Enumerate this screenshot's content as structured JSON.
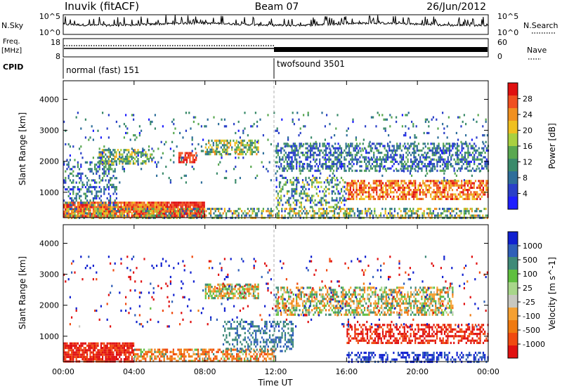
{
  "header": {
    "title_left": "Inuvik (fitACF)",
    "title_center": "Beam 07",
    "title_right": "26/Jun/2012"
  },
  "left_labels": {
    "nsky": "N.Sky",
    "freq": "Freq.",
    "mhz": "[MHz]",
    "cpid": "CPID"
  },
  "right_labels": {
    "nsearch": "N.Search",
    "nave": "Nave"
  },
  "panels": {
    "noise": {
      "left_ticks": [
        "10^5",
        "10^0"
      ],
      "right_ticks": [
        "10^5",
        "10^0"
      ]
    },
    "freq": {
      "left_ticks": [
        "18",
        "8"
      ],
      "right_ticks": [
        "60",
        "0"
      ]
    }
  },
  "cpid_segments": [
    {
      "label": "normal (fast) 151",
      "start_hour": 0
    },
    {
      "label": "twofsound 3501",
      "start_hour": 12
    }
  ],
  "colors": {
    "power": [
      "#1f1fff",
      "#2a40c8",
      "#2e6e9a",
      "#3a8a6a",
      "#5aa850",
      "#a9d040",
      "#f0c020",
      "#f09020",
      "#f05020",
      "#e01010"
    ],
    "velocity": [
      "#1020d0",
      "#2f5fb8",
      "#3f8a78",
      "#5fbf3f",
      "#a8d68a",
      "#c8c8c0",
      "#f5a032",
      "#f07a10",
      "#f04a10",
      "#e01010"
    ]
  },
  "chart_data": [
    {
      "type": "heatmap",
      "name": "power",
      "ylabel": "Slant Range [km]",
      "ylim": [
        180,
        4600
      ],
      "xlim_hours": [
        0,
        24
      ],
      "y_ticks": [
        1000,
        2000,
        3000,
        4000
      ],
      "colorbar": {
        "label": "Power [dB]",
        "ticks": [
          "4",
          "8",
          "12",
          "16",
          "20",
          "24",
          "28"
        ],
        "range": [
          0,
          30
        ]
      },
      "scatter_bands": [
        {
          "t": [
            0,
            6
          ],
          "r": [
            200,
            700
          ],
          "value_range": [
            20,
            30
          ],
          "density": 0.9
        },
        {
          "t": [
            6,
            8
          ],
          "r": [
            200,
            700
          ],
          "value_range": [
            24,
            30
          ],
          "density": 0.95
        },
        {
          "t": [
            0,
            24
          ],
          "r": [
            200,
            500
          ],
          "value_range": [
            4,
            24
          ],
          "density": 0.5
        },
        {
          "t": [
            0,
            3
          ],
          "r": [
            600,
            2000
          ],
          "value_range": [
            2,
            14
          ],
          "density": 0.35
        },
        {
          "t": [
            2,
            5
          ],
          "r": [
            1900,
            2400
          ],
          "value_range": [
            6,
            22
          ],
          "density": 0.6
        },
        {
          "t": [
            6.5,
            7.5
          ],
          "r": [
            1950,
            2300
          ],
          "value_range": [
            24,
            30
          ],
          "density": 0.7
        },
        {
          "t": [
            8,
            11
          ],
          "r": [
            2200,
            2700
          ],
          "value_range": [
            8,
            22
          ],
          "density": 0.6
        },
        {
          "t": [
            12,
            24
          ],
          "r": [
            1700,
            2600
          ],
          "value_range": [
            2,
            14
          ],
          "density": 0.5
        },
        {
          "t": [
            16,
            24
          ],
          "r": [
            800,
            1400
          ],
          "value_range": [
            18,
            30
          ],
          "density": 0.65
        },
        {
          "t": [
            12,
            16
          ],
          "r": [
            500,
            1500
          ],
          "value_range": [
            2,
            20
          ],
          "density": 0.35
        },
        {
          "t": [
            0,
            24
          ],
          "r": [
            1300,
            3600
          ],
          "value_range": [
            2,
            14
          ],
          "density": 0.05
        }
      ]
    },
    {
      "type": "heatmap",
      "name": "velocity",
      "xlabel": "Time UT",
      "ylabel": "Slant Range [km]",
      "ylim": [
        180,
        4600
      ],
      "xlim_hours": [
        0,
        24
      ],
      "x_ticks": [
        "00:00",
        "04:00",
        "08:00",
        "12:00",
        "16:00",
        "20:00",
        "00:00"
      ],
      "y_ticks": [
        1000,
        2000,
        3000,
        4000
      ],
      "colorbar": {
        "label": "Velocity [m s^-1]",
        "ticks": [
          "-1000",
          "-500",
          "-100",
          "-25",
          "25",
          "100",
          "500",
          "1000"
        ]
      },
      "scatter_bands": [
        {
          "t": [
            0,
            4
          ],
          "r": [
            200,
            800
          ],
          "value_range": [
            -500,
            -100
          ],
          "density": 0.85
        },
        {
          "t": [
            4,
            12
          ],
          "r": [
            200,
            600
          ],
          "value_range": [
            -100,
            25
          ],
          "density": 0.6
        },
        {
          "t": [
            8,
            11
          ],
          "r": [
            2200,
            2700
          ],
          "value_range": [
            -25,
            25
          ],
          "density": 0.7
        },
        {
          "t": [
            12,
            22
          ],
          "r": [
            1700,
            2600
          ],
          "value_range": [
            -25,
            25
          ],
          "density": 0.55
        },
        {
          "t": [
            9,
            13
          ],
          "r": [
            500,
            1500
          ],
          "value_range": [
            25,
            100
          ],
          "density": 0.4
        },
        {
          "t": [
            16,
            24
          ],
          "r": [
            800,
            1400
          ],
          "value_range": [
            -500,
            -100
          ],
          "density": 0.5
        },
        {
          "t": [
            16,
            24
          ],
          "r": [
            200,
            500
          ],
          "value_range": [
            100,
            500
          ],
          "density": 0.4
        },
        {
          "t": [
            0,
            24
          ],
          "r": [
            1300,
            3600
          ],
          "value_range": [
            -1000,
            1000
          ],
          "density": 0.04
        }
      ]
    }
  ]
}
